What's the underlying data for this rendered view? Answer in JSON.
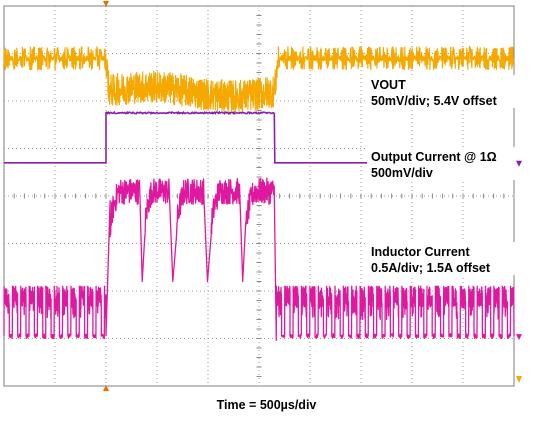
{
  "chart_data": {
    "type": "line",
    "title": "",
    "xlabel": "Time = 500µs/div",
    "ylabel": "",
    "grid": true,
    "x_divisions": 10,
    "y_divisions": 8,
    "x_range_us": [
      0,
      5000
    ],
    "load_step_us": [
      1000,
      2650
    ],
    "series": [
      {
        "name": "VOUT",
        "scale": "50mV/div; 5.4V offset",
        "color": "#f5a800",
        "label_lines": [
          "VOUT",
          "50mV/div; 5.4V offset"
        ],
        "center_div_light_load": 6.9,
        "center_div_heavy_load": 6.2,
        "ripple_div_light_load": 0.25,
        "ripple_div_heavy_load": 0.35
      },
      {
        "name": "Output Current @ 1Ω",
        "scale": "500mV/div",
        "color": "#8a1fa8",
        "label_lines": [
          "Output Current @ 1Ω",
          "500mV/div"
        ],
        "level_div_low": 4.7,
        "level_div_high": 5.75
      },
      {
        "name": "Inductor Current",
        "scale": "0.5A/div; 1.5A offset",
        "color": "#e0189f",
        "label_lines": [
          "Inductor Current",
          "0.5A/div; 1.5A offset"
        ],
        "burst_high_div": 2.1,
        "burst_low_div": 1.05,
        "heavy_peak_div": 4.1,
        "heavy_valley_div": 3.2
      }
    ]
  }
}
